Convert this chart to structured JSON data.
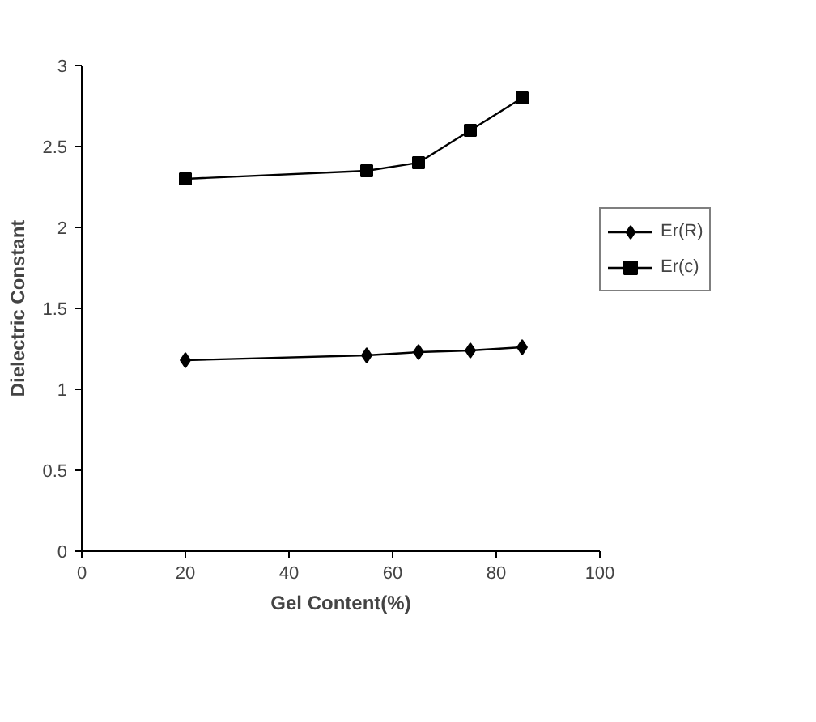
{
  "chart_data": {
    "type": "line",
    "xlabel": "Gel Content(%)",
    "ylabel": "Dielectric Constant",
    "x": [
      20,
      55,
      65,
      75,
      85
    ],
    "series": [
      {
        "name": "Er(R)",
        "color": "#000000",
        "marker": "diamond",
        "values": [
          1.18,
          1.21,
          1.23,
          1.24,
          1.26
        ]
      },
      {
        "name": "Er(c)",
        "color": "#000000",
        "marker": "square",
        "values": [
          2.3,
          2.35,
          2.4,
          2.6,
          2.8
        ]
      }
    ],
    "xlim": [
      0,
      100
    ],
    "xticks": [
      0,
      20,
      40,
      60,
      80,
      100
    ],
    "ylim": [
      0,
      3
    ],
    "yticks": [
      0,
      0.5,
      1,
      1.5,
      2,
      2.5,
      3
    ],
    "grid": false,
    "legend": "right"
  }
}
